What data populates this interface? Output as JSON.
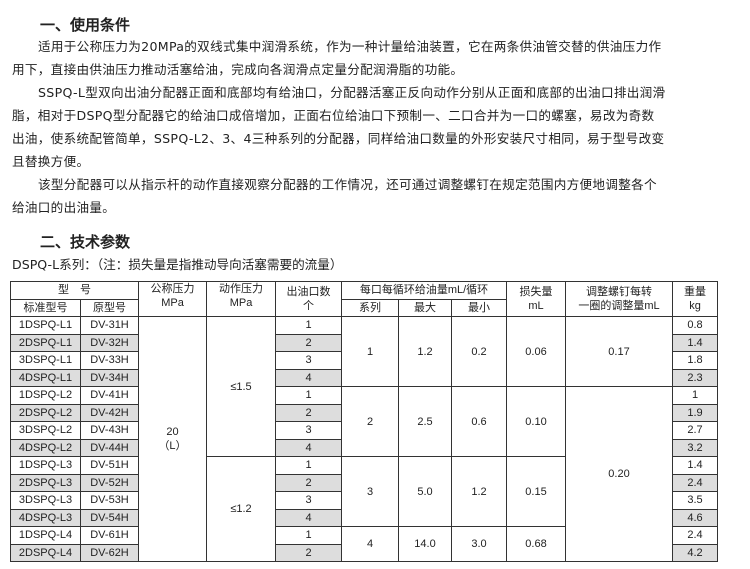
{
  "section1": {
    "title": "一、使用条件",
    "paragraphs": [
      [
        "适用于公称压力为20MPa的双线式集中润滑系统，作为一种计量给油装置，它在两条供油管交替的供油压力作",
        "用下，直接由供油压力推动活塞给油，完成向各润滑点定量分配润滑脂的功能。"
      ],
      [
        "SSPQ-L型双向出油分配器正面和底部均有给油口，分配器活塞正反向动作分别从正面和底部的出油口排出润滑",
        "脂，相对于DSPQ型分配器它的给油口成倍增加，正面右位给油口下预制一、二口合并为一口的螺塞，易改为奇数",
        "出油，使系统配管简单，SSPQ-L2、3、4三种系列的分配器，同样给油口数量的外形安装尺寸相同，易于型号改变",
        "且替换方便。"
      ],
      [
        "该型分配器可以从指示杆的动作直接观察分配器的工作情况，还可通过调整螺钉在规定范围内方便地调整各个",
        "给油口的出油量。"
      ]
    ]
  },
  "section2": {
    "title": "二、技术参数",
    "subtitle": "DSPQ-L系列：（注：损失量是指推动导向活塞需要的流量）"
  },
  "table": {
    "h": {
      "model": "型　号",
      "std": "标准型号",
      "orig": "原型号",
      "nominal": "公称压力",
      "nominal_u": "MPa",
      "action": "动作压力",
      "action_u": "MPa",
      "outlets": "出油口数",
      "outlets_u": "个",
      "per": "每口每循环给油量mL/循环",
      "series": "系列",
      "max": "最大",
      "min": "最小",
      "loss": "损失量",
      "loss_u": "mL",
      "adj": "调整螺钉每转",
      "adj2": "一圈的调整量mL",
      "weight": "重量",
      "weight_u": "kg"
    },
    "nominal": "20",
    "nominal2": "（L）",
    "action": [
      "≤1.5",
      "≤1.2"
    ],
    "groups": [
      {
        "series": "1",
        "max": "1.2",
        "min": "0.2",
        "loss": "0.06"
      },
      {
        "series": "2",
        "max": "2.5",
        "min": "0.6",
        "loss": "0.10"
      },
      {
        "series": "3",
        "max": "5.0",
        "min": "1.2",
        "loss": "0.15"
      },
      {
        "series": "4",
        "max": "14.0",
        "min": "3.0",
        "loss": "0.68"
      }
    ],
    "adj": [
      "0.17",
      "0.20"
    ],
    "rows": [
      {
        "std": "1DSPQ-L1",
        "orig": "DV-31H",
        "out": "1",
        "kg": "0.8"
      },
      {
        "std": "2DSPQ-L1",
        "orig": "DV-32H",
        "out": "2",
        "kg": "1.4"
      },
      {
        "std": "3DSPQ-L1",
        "orig": "DV-33H",
        "out": "3",
        "kg": "1.8"
      },
      {
        "std": "4DSPQ-L1",
        "orig": "DV-34H",
        "out": "4",
        "kg": "2.3"
      },
      {
        "std": "1DSPQ-L2",
        "orig": "DV-41H",
        "out": "1",
        "kg": "1"
      },
      {
        "std": "2DSPQ-L2",
        "orig": "DV-42H",
        "out": "2",
        "kg": "1.9"
      },
      {
        "std": "3DSPQ-L2",
        "orig": "DV-43H",
        "out": "3",
        "kg": "2.7"
      },
      {
        "std": "4DSPQ-L2",
        "orig": "DV-44H",
        "out": "4",
        "kg": "3.2"
      },
      {
        "std": "1DSPQ-L3",
        "orig": "DV-51H",
        "out": "1",
        "kg": "1.4"
      },
      {
        "std": "2DSPQ-L3",
        "orig": "DV-52H",
        "out": "2",
        "kg": "2.4"
      },
      {
        "std": "3DSPQ-L3",
        "orig": "DV-53H",
        "out": "3",
        "kg": "3.5"
      },
      {
        "std": "4DSPQ-L3",
        "orig": "DV-54H",
        "out": "4",
        "kg": "4.6"
      },
      {
        "std": "1DSPQ-L4",
        "orig": "DV-61H",
        "out": "1",
        "kg": "2.4"
      },
      {
        "std": "2DSPQ-L4",
        "orig": "DV-62H",
        "out": "2",
        "kg": "4.2"
      }
    ]
  }
}
